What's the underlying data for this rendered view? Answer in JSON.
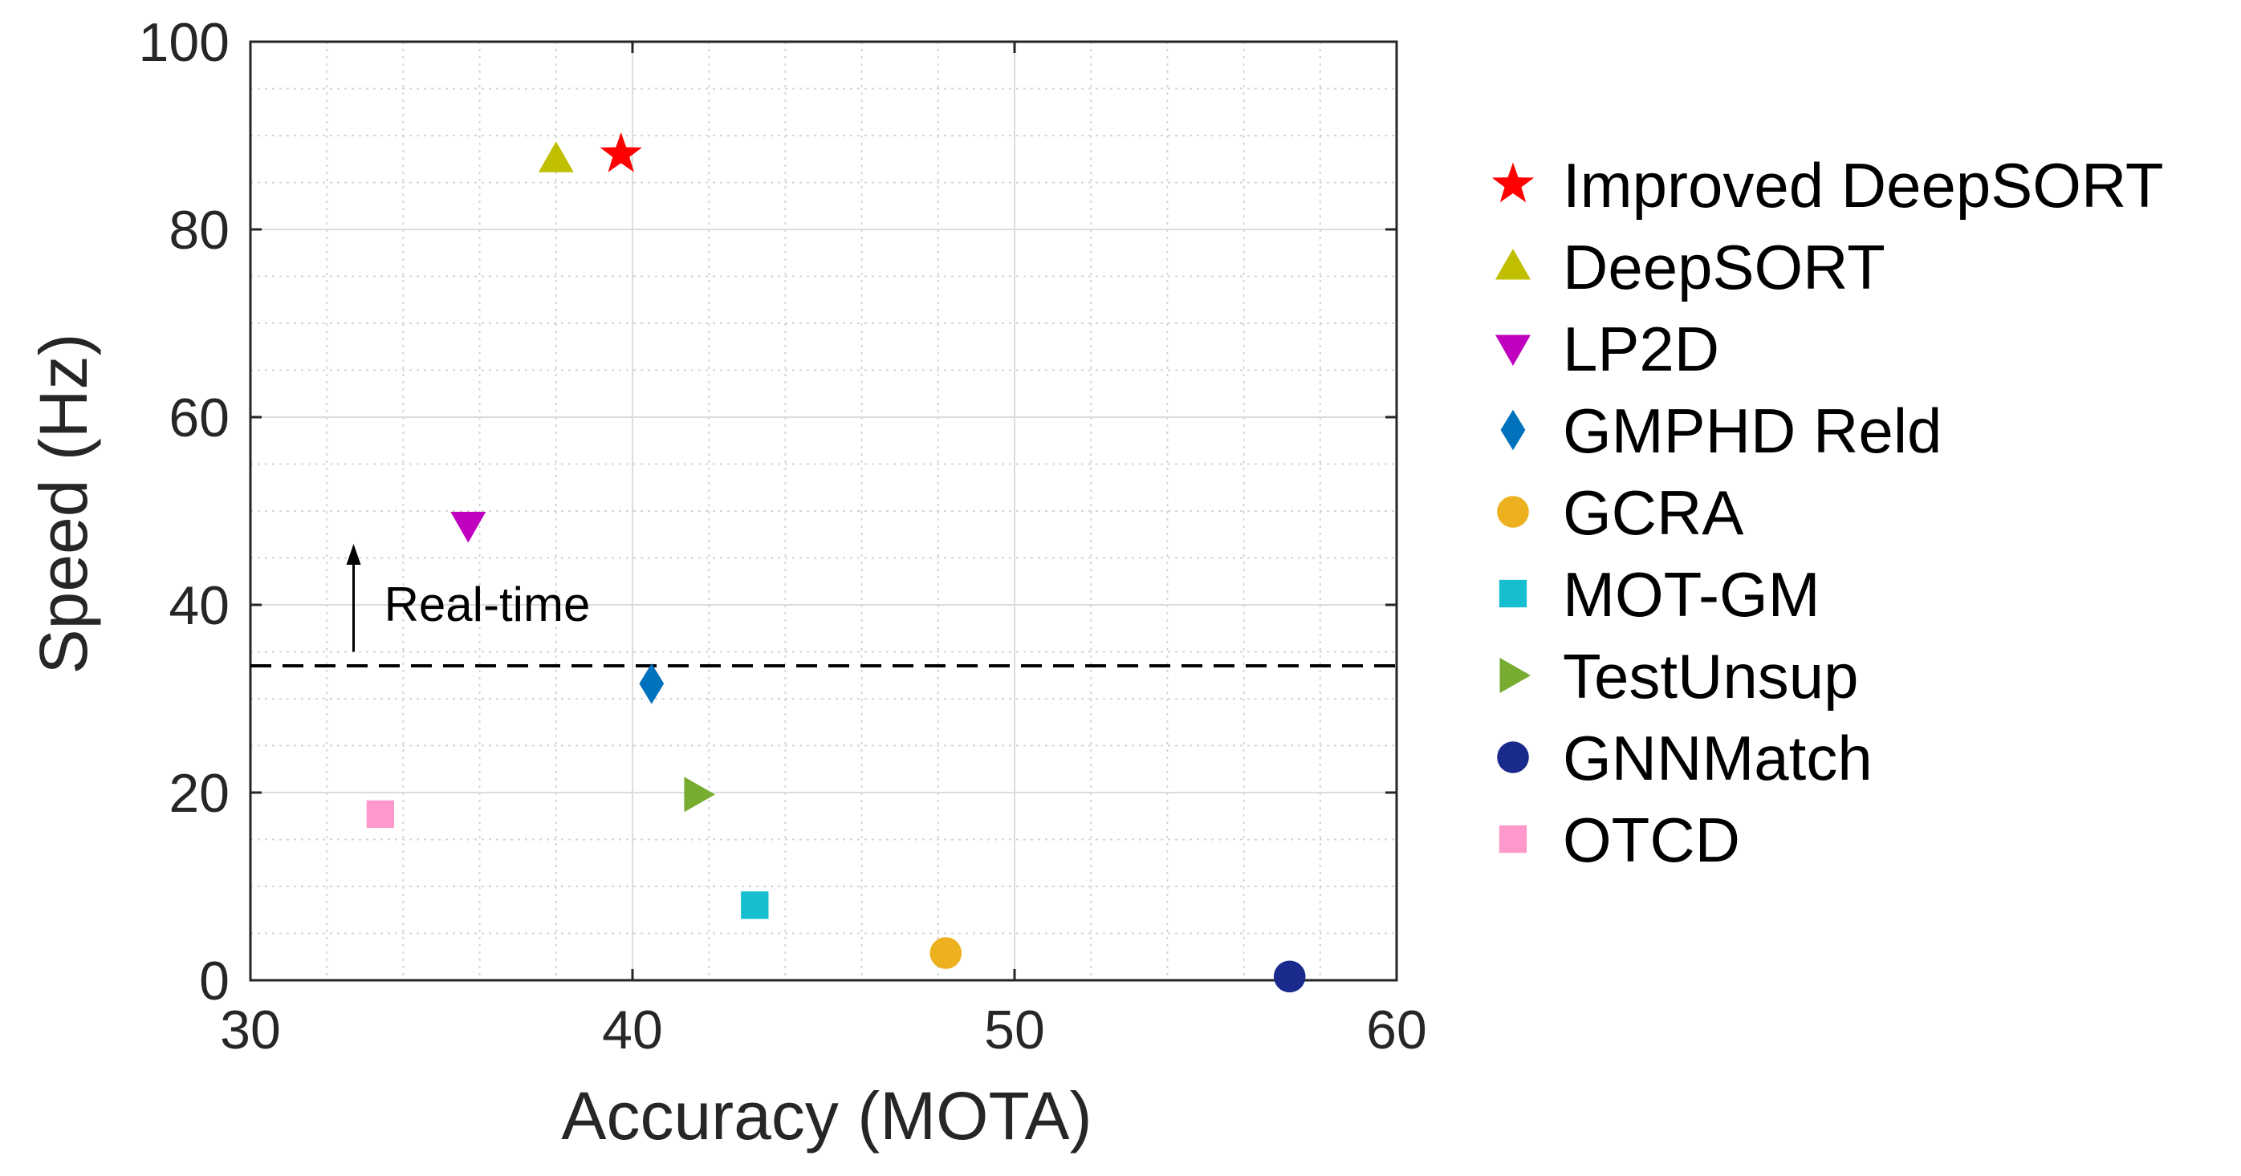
{
  "chart_data": {
    "type": "scatter",
    "xlabel": "Accuracy (MOTA)",
    "ylabel": "Speed (Hz)",
    "xlim": [
      30,
      60
    ],
    "ylim": [
      0,
      100
    ],
    "x_ticks": [
      30,
      40,
      50,
      60
    ],
    "y_ticks": [
      0,
      20,
      40,
      60,
      80,
      100
    ],
    "grid": true,
    "minor_grid": true,
    "legend_position": "outside-right",
    "reference_line": {
      "y": 33.5,
      "style": "dashed",
      "color": "#000000"
    },
    "annotation": {
      "text": "Real-time",
      "x": 33.5,
      "y": 40,
      "arrow_from_y": 35,
      "arrow_to_y": 46.5,
      "arrow_x": 32.7
    },
    "series": [
      {
        "name": "Improved DeepSORT",
        "x": 39.7,
        "y": 88.0,
        "marker": "star",
        "color": "#ff0000"
      },
      {
        "name": "DeepSORT",
        "x": 38.0,
        "y": 87.5,
        "marker": "triangle-up",
        "color": "#bfbf00"
      },
      {
        "name": "LP2D",
        "x": 35.7,
        "y": 48.5,
        "marker": "triangle-down",
        "color": "#bf00bf"
      },
      {
        "name": "GMPHD Reld",
        "x": 40.5,
        "y": 31.6,
        "marker": "diamond",
        "color": "#0072bd"
      },
      {
        "name": "GCRA",
        "x": 48.2,
        "y": 2.9,
        "marker": "circle",
        "color": "#edb120"
      },
      {
        "name": "MOT-GM",
        "x": 43.2,
        "y": 8.0,
        "marker": "square",
        "color": "#17becf"
      },
      {
        "name": "TestUnsup",
        "x": 41.7,
        "y": 19.8,
        "marker": "triangle-right",
        "color": "#77ac30"
      },
      {
        "name": "GNNMatch",
        "x": 57.2,
        "y": 0.4,
        "marker": "circle",
        "color": "#1a2a8c"
      },
      {
        "name": "OTCD",
        "x": 33.4,
        "y": 17.7,
        "marker": "square",
        "color": "#ff99cc"
      }
    ]
  }
}
